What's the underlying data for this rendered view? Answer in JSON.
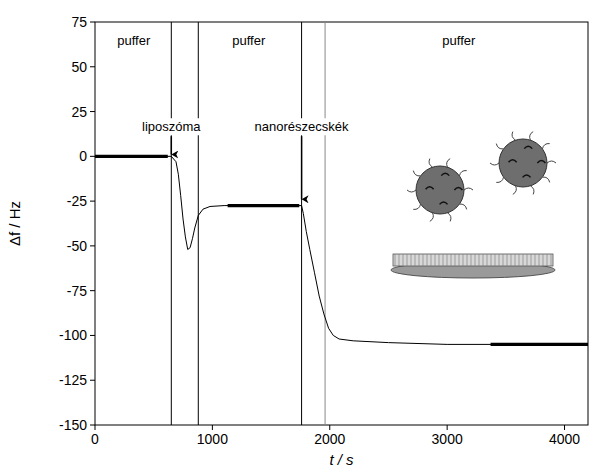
{
  "chart_data": {
    "type": "line",
    "x_label": "t / s",
    "y_label": "Δf / Hz",
    "xlim": [
      0,
      4200
    ],
    "xticks": [
      0,
      1000,
      2000,
      3000,
      4000
    ],
    "ylim": [
      -150,
      75
    ],
    "yticks": [
      -150,
      -125,
      -100,
      -75,
      -50,
      -25,
      0,
      25,
      50,
      75
    ],
    "grid": false,
    "color": "#000000",
    "series": [
      {
        "x": [
          0,
          300,
          650,
          690,
          710,
          730,
          750,
          770,
          790,
          810,
          830,
          850,
          880,
          920,
          980,
          1100,
          1400,
          1760,
          1775,
          1800,
          1830,
          1870,
          1910,
          1950,
          1990,
          2030,
          2080,
          2200,
          2500,
          3000,
          3500,
          4200
        ],
        "values": [
          0,
          0,
          0,
          -3,
          -10,
          -22,
          -35,
          -45,
          -52,
          -51,
          -46,
          -40,
          -33,
          -29.5,
          -28,
          -27.5,
          -27.5,
          -27.5,
          -32,
          -42,
          -52,
          -65,
          -78,
          -88,
          -96,
          -100,
          -102,
          -103,
          -104,
          -105,
          -105,
          -105
        ],
        "line_style": "solid"
      },
      {
        "x": [
          0,
          620
        ],
        "values": [
          0,
          0
        ],
        "line_style": "thick"
      },
      {
        "x": [
          1130,
          1740
        ],
        "values": [
          -27.5,
          -27.5
        ],
        "line_style": "thick"
      },
      {
        "x": [
          3370,
          4200
        ],
        "values": [
          -105,
          -105
        ],
        "line_style": "thick"
      }
    ],
    "vlines": [
      650,
      880,
      1760,
      1960
    ],
    "labels": [
      {
        "text": "puffer",
        "x": 330,
        "y": 62
      },
      {
        "text": "puffer",
        "x": 1310,
        "y": 62
      },
      {
        "text": "puffer",
        "x": 3100,
        "y": 62
      }
    ],
    "arrows": [
      {
        "text": "liposzóma",
        "x": 650,
        "y": 14,
        "tip": 1
      },
      {
        "text": "nanorészecskék",
        "x": 1760,
        "y": 14,
        "tip": -24
      }
    ]
  }
}
